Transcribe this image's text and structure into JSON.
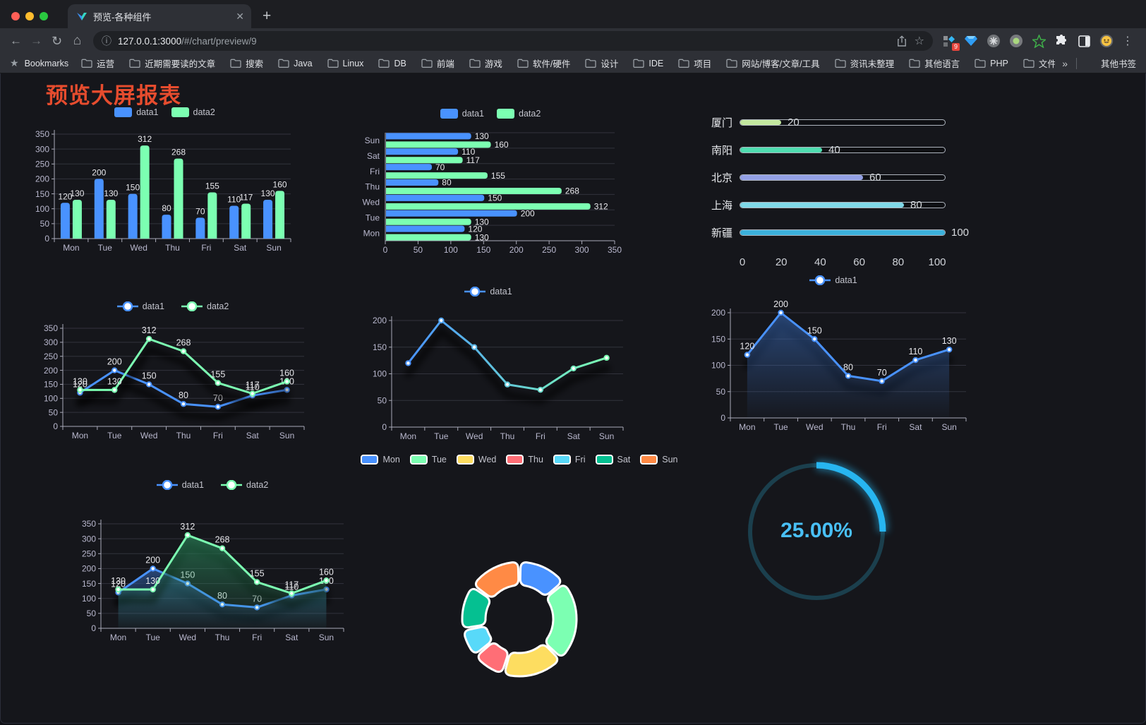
{
  "browser": {
    "tab_title": "预览-各种组件",
    "url_host": "127.0.0.1:3000",
    "url_path": "/#/chart/preview/9",
    "bookmarks_label": "Bookmarks",
    "bookmarks": [
      "运营",
      "近期需要读的文章",
      "搜索",
      "Java",
      "Linux",
      "DB",
      "前端",
      "游戏",
      "软件/硬件",
      "设计",
      "IDE",
      "项目",
      "网站/博客/文章/工具",
      "资讯未整理",
      "其他语言",
      "PHP",
      "文件服务器"
    ],
    "bookmarks_overflow": "»",
    "other_bookmarks": "其他书签",
    "extension_badge": "9"
  },
  "page": {
    "title": "预览大屏报表",
    "title_color": "#e64c2e",
    "background": "#15161b"
  },
  "chart_data": [
    {
      "id": "bar-grouped",
      "type": "bar",
      "categories": [
        "Mon",
        "Tue",
        "Wed",
        "Thu",
        "Fri",
        "Sat",
        "Sun"
      ],
      "series": [
        {
          "name": "data1",
          "color": "#4992ff",
          "values": [
            120,
            200,
            150,
            80,
            70,
            110,
            130
          ]
        },
        {
          "name": "data2",
          "color": "#7cffb2",
          "values": [
            130,
            130,
            312,
            268,
            155,
            117,
            160
          ]
        }
      ],
      "ylim": [
        0,
        350
      ],
      "ytick_step": 50,
      "labels": true,
      "legend_position": "top"
    },
    {
      "id": "bar-horizontal",
      "type": "bar-horizontal",
      "categories": [
        "Mon",
        "Tue",
        "Wed",
        "Thu",
        "Fri",
        "Sat",
        "Sun"
      ],
      "series": [
        {
          "name": "data1",
          "color": "#4992ff",
          "values": [
            120,
            200,
            150,
            80,
            70,
            110,
            130
          ]
        },
        {
          "name": "data2",
          "color": "#7cffb2",
          "values": [
            130,
            130,
            312,
            268,
            155,
            117,
            160
          ]
        }
      ],
      "xlim": [
        0,
        350
      ],
      "xtick_step": 50,
      "labels": true,
      "legend_position": "top"
    },
    {
      "id": "city-progress",
      "type": "progress",
      "items": [
        {
          "label": "厦门",
          "value": 20,
          "color": "#c3e89f"
        },
        {
          "label": "南阳",
          "value": 40,
          "color": "#4fdcb0"
        },
        {
          "label": "北京",
          "value": 60,
          "color": "#93a0e5"
        },
        {
          "label": "上海",
          "value": 80,
          "color": "#7fd8e8"
        },
        {
          "label": "新疆",
          "value": 100,
          "color": "#3cb1dc"
        }
      ],
      "max": 100,
      "ticks": [
        0,
        20,
        40,
        60,
        80,
        100
      ]
    },
    {
      "id": "line-two-series",
      "type": "line",
      "categories": [
        "Mon",
        "Tue",
        "Wed",
        "Thu",
        "Fri",
        "Sat",
        "Sun"
      ],
      "series": [
        {
          "name": "data1",
          "color": "#4992ff",
          "values": [
            120,
            200,
            150,
            80,
            70,
            110,
            130
          ]
        },
        {
          "name": "data2",
          "color": "#7cffb2",
          "values": [
            130,
            130,
            312,
            268,
            155,
            117,
            160
          ]
        }
      ],
      "ylim": [
        0,
        350
      ],
      "ytick_step": 50,
      "labels": true,
      "legend_position": "top"
    },
    {
      "id": "line-gradient",
      "type": "line-gradient",
      "categories": [
        "Mon",
        "Tue",
        "Wed",
        "Thu",
        "Fri",
        "Sat",
        "Sun"
      ],
      "series": [
        {
          "name": "data1",
          "colors": [
            "#4992ff",
            "#7cffb2"
          ],
          "values": [
            120,
            200,
            150,
            80,
            70,
            110,
            130
          ]
        }
      ],
      "ylim": [
        0,
        200
      ],
      "ytick_step": 50,
      "labels": false,
      "legend_position": "top"
    },
    {
      "id": "area-single",
      "type": "area",
      "categories": [
        "Mon",
        "Tue",
        "Wed",
        "Thu",
        "Fri",
        "Sat",
        "Sun"
      ],
      "series": [
        {
          "name": "data1",
          "color": "#4992ff",
          "area_color": "#3a6ec0",
          "values": [
            120,
            200,
            150,
            80,
            70,
            110,
            130
          ]
        }
      ],
      "ylim": [
        0,
        200
      ],
      "ytick_step": 50,
      "labels": true,
      "legend_position": "top"
    },
    {
      "id": "area-two-series",
      "type": "area",
      "categories": [
        "Mon",
        "Tue",
        "Wed",
        "Thu",
        "Fri",
        "Sat",
        "Sun"
      ],
      "series": [
        {
          "name": "data1",
          "color": "#4992ff",
          "area_color": "#3a6ec0",
          "values": [
            120,
            200,
            150,
            80,
            70,
            110,
            130
          ]
        },
        {
          "name": "data2",
          "color": "#7cffb2",
          "area_color": "#2f9e68",
          "values": [
            130,
            130,
            312,
            268,
            155,
            117,
            160
          ]
        }
      ],
      "ylim": [
        0,
        350
      ],
      "ytick_step": 50,
      "labels": true,
      "legend_position": "top"
    },
    {
      "id": "donut",
      "type": "pie",
      "categories": [
        "Mon",
        "Tue",
        "Wed",
        "Thu",
        "Fri",
        "Sat",
        "Sun"
      ],
      "values": [
        120,
        200,
        150,
        80,
        70,
        110,
        130
      ],
      "colors": [
        "#4992ff",
        "#7cffb2",
        "#fddd60",
        "#ff6e76",
        "#58d9f9",
        "#05c091",
        "#ff8a45"
      ],
      "legend_position": "top"
    },
    {
      "id": "gauge",
      "type": "gauge",
      "value": 25,
      "label": "25.00%",
      "color": "#27b5f0",
      "track_color": "#1b3f4d",
      "text_color": "#49c0f6"
    }
  ]
}
